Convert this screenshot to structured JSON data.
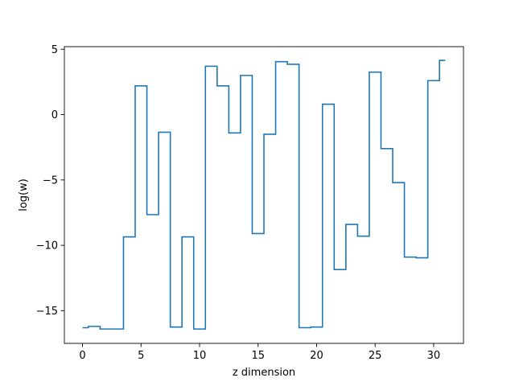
{
  "chart_data": {
    "type": "line",
    "drawstyle": "steps-mid",
    "title": "",
    "xlabel": "z dimension",
    "ylabel": "log(w)",
    "xlim": [
      -1.55,
      32.55
    ],
    "ylim": [
      -17.5,
      5.2
    ],
    "xticks": [
      0,
      5,
      10,
      15,
      20,
      25,
      30
    ],
    "yticks": [
      -15,
      -10,
      -5,
      0,
      5
    ],
    "grid": false,
    "legend": "none",
    "line_color": "#1f77b4",
    "x": [
      0,
      1,
      2,
      3,
      4,
      5,
      6,
      7,
      8,
      9,
      10,
      11,
      12,
      13,
      14,
      15,
      16,
      17,
      18,
      19,
      20,
      21,
      22,
      23,
      24,
      25,
      26,
      27,
      28,
      29,
      30,
      31
    ],
    "y": [
      -16.3,
      -16.2,
      -16.4,
      -16.4,
      -9.35,
      2.2,
      -7.65,
      -1.35,
      -16.25,
      -9.35,
      -16.4,
      3.7,
      2.2,
      -1.4,
      3.0,
      -9.1,
      -1.5,
      4.05,
      3.85,
      -16.3,
      -16.25,
      0.8,
      -11.85,
      -8.4,
      -9.3,
      3.25,
      -2.6,
      -5.2,
      -10.9,
      -10.95,
      2.6,
      4.15
    ]
  }
}
